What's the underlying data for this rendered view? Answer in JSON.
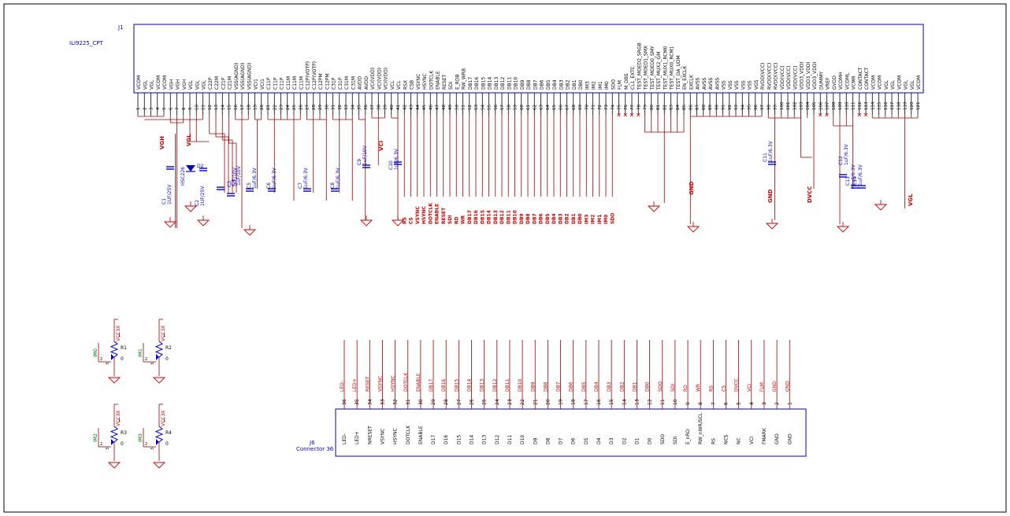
{
  "colors": {
    "wire": "#990000",
    "body": "#0000aa",
    "ref": "#0000cc",
    "pin": "#000000",
    "net": "#cc0000",
    "gnd": "#cc0000",
    "frame": "#000000",
    "cap": "#0000cc",
    "green": "#006600"
  },
  "j1": {
    "ref": "J1",
    "value": "ILI9225_CPT",
    "pins": [
      {
        "n": "1",
        "name": "VCOM"
      },
      {
        "n": "2",
        "name": "VGL"
      },
      {
        "n": "3",
        "name": "VGL"
      },
      {
        "n": "4",
        "name": "VCOM"
      },
      {
        "n": "5",
        "name": "VCOM"
      },
      {
        "n": "6",
        "name": "VGH"
      },
      {
        "n": "7",
        "name": "VGH"
      },
      {
        "n": "8",
        "name": "VGH"
      },
      {
        "n": "9",
        "name": "VGL"
      },
      {
        "n": "10",
        "name": "VGL"
      },
      {
        "n": "11",
        "name": "VGL"
      },
      {
        "n": "12",
        "name": "C22P"
      },
      {
        "n": "13",
        "name": "C22M"
      },
      {
        "n": "14",
        "name": "C21P"
      },
      {
        "n": "15",
        "name": "C21M"
      },
      {
        "n": "16",
        "name": "VSS(AGND)"
      },
      {
        "n": "17",
        "name": "VSS(AGND)"
      },
      {
        "n": "18",
        "name": "VSS(AGND)"
      },
      {
        "n": "19",
        "name": "VCI1"
      },
      {
        "n": "20",
        "name": "VCI1"
      },
      {
        "n": "21",
        "name": "C11P"
      },
      {
        "n": "22",
        "name": "C11P"
      },
      {
        "n": "23",
        "name": "C11P"
      },
      {
        "n": "24",
        "name": "C11M"
      },
      {
        "n": "25",
        "name": "C11M"
      },
      {
        "n": "26",
        "name": "C11M"
      },
      {
        "n": "27",
        "name": "C12P(VOTP)"
      },
      {
        "n": "28",
        "name": "C12P(VOTP)"
      },
      {
        "n": "29",
        "name": "C12PM"
      },
      {
        "n": "30",
        "name": "C12PM"
      },
      {
        "n": "31",
        "name": "C31P"
      },
      {
        "n": "32",
        "name": "C31P"
      },
      {
        "n": "33",
        "name": "C31M"
      },
      {
        "n": "34",
        "name": "C31M"
      },
      {
        "n": "35",
        "name": "AVDD"
      },
      {
        "n": "36",
        "name": "AVDD"
      },
      {
        "n": "37",
        "name": "VCI(VDD)"
      },
      {
        "n": "38",
        "name": "VCI(VDD)"
      },
      {
        "n": "39",
        "name": "VCI(VDD)"
      },
      {
        "n": "40",
        "name": "VCL"
      },
      {
        "n": "41",
        "name": "VCL"
      },
      {
        "n": "42",
        "name": "RSX"
      },
      {
        "n": "43",
        "name": "CSB"
      },
      {
        "n": "44",
        "name": "VSYNC"
      },
      {
        "n": "45",
        "name": "HSYNC"
      },
      {
        "n": "46",
        "name": "DOTCLK"
      },
      {
        "n": "47",
        "name": "ENABLE"
      },
      {
        "n": "48",
        "name": "RESET"
      },
      {
        "n": "49",
        "name": "SDI"
      },
      {
        "n": "50",
        "name": "E_RDB"
      },
      {
        "n": "51",
        "name": "RW_WRB"
      },
      {
        "n": "52",
        "name": "DB17"
      },
      {
        "n": "53",
        "name": "DB16"
      },
      {
        "n": "54",
        "name": "DB15"
      },
      {
        "n": "55",
        "name": "DB14"
      },
      {
        "n": "56",
        "name": "DB13"
      },
      {
        "n": "57",
        "name": "DB12"
      },
      {
        "n": "58",
        "name": "DB11"
      },
      {
        "n": "59",
        "name": "DB10"
      },
      {
        "n": "60",
        "name": "DB9"
      },
      {
        "n": "61",
        "name": "DB8"
      },
      {
        "n": "62",
        "name": "DB7"
      },
      {
        "n": "63",
        "name": "DB6"
      },
      {
        "n": "64",
        "name": "DB5"
      },
      {
        "n": "65",
        "name": "DB4"
      },
      {
        "n": "66",
        "name": "DB3"
      },
      {
        "n": "67",
        "name": "DB2"
      },
      {
        "n": "68",
        "name": "DB1"
      },
      {
        "n": "69",
        "name": "DB0"
      },
      {
        "n": "70",
        "name": "IM3"
      },
      {
        "n": "71",
        "name": "IM2"
      },
      {
        "n": "72",
        "name": "IM1"
      },
      {
        "n": "73",
        "name": "IM0"
      },
      {
        "n": "74",
        "name": "SDO"
      },
      {
        "n": "75",
        "name": "FLM"
      },
      {
        "n": "76",
        "name": "M_DBS"
      },
      {
        "n": "77",
        "name": "CL1_EXTC"
      },
      {
        "n": "78",
        "name": "TEST_MOED2_SRGB"
      },
      {
        "n": "79",
        "name": "TEST_MOED1_SMX"
      },
      {
        "n": "80",
        "name": "TEST_MOED0_SMY"
      },
      {
        "n": "81",
        "name": "TEST_MUX2_GM"
      },
      {
        "n": "82",
        "name": "TEST_MUX1_RCM0"
      },
      {
        "n": "83",
        "name": "TEST_MUX0_RCM1"
      },
      {
        "n": "84",
        "name": "TEST_DA_UDM"
      },
      {
        "n": "85",
        "name": "EN_EXCLK"
      },
      {
        "n": "86",
        "name": "EXCLK"
      },
      {
        "n": "87",
        "name": "AVSS"
      },
      {
        "n": "88",
        "name": "AVSS"
      },
      {
        "n": "89",
        "name": "AVSS"
      },
      {
        "n": "90",
        "name": "AVSS"
      },
      {
        "n": "91",
        "name": "VSS"
      },
      {
        "n": "92",
        "name": "VSS"
      },
      {
        "n": "93",
        "name": "VSS"
      },
      {
        "n": "94",
        "name": "VSS"
      },
      {
        "n": "95",
        "name": "VSS"
      },
      {
        "n": "96",
        "name": "VGS"
      },
      {
        "n": "97",
        "name": "RVDD(VCC)"
      },
      {
        "n": "98",
        "name": "RVDD(VCC)"
      },
      {
        "n": "99",
        "name": "RVDD(VCC)"
      },
      {
        "n": "100",
        "name": "VDD(VCC)"
      },
      {
        "n": "101",
        "name": "VDD(VCC)"
      },
      {
        "n": "102",
        "name": "VDD(VCC)"
      },
      {
        "n": "103",
        "name": "VDD3_VDDI"
      },
      {
        "n": "104",
        "name": "VDD3_VDDI"
      },
      {
        "n": "105",
        "name": "VDD3_VDDI"
      },
      {
        "n": "106",
        "name": "DUMMY"
      },
      {
        "n": "107",
        "name": "VREF"
      },
      {
        "n": "108",
        "name": "GVDD"
      },
      {
        "n": "109",
        "name": "VCOMH"
      },
      {
        "n": "110",
        "name": "VCOML"
      },
      {
        "n": "111",
        "name": "VCMR"
      },
      {
        "n": "112",
        "name": "CONTACT"
      },
      {
        "n": "113",
        "name": "CONTACT"
      },
      {
        "n": "114",
        "name": "VCOM"
      },
      {
        "n": "115",
        "name": "VCOM"
      },
      {
        "n": "116",
        "name": "VGL"
      },
      {
        "n": "117",
        "name": "VGL"
      },
      {
        "n": "118",
        "name": "VCOM"
      },
      {
        "n": "119",
        "name": "VGL"
      },
      {
        "n": "120",
        "name": "VGL"
      },
      {
        "n": "121",
        "name": "VCOM"
      }
    ]
  },
  "j1_nets": [
    "RS",
    "CS",
    "VSYNC",
    "HSYNC",
    "DOTCLK",
    "ENABLE",
    "RESET",
    "SDI",
    "RD",
    "WR",
    "DB17",
    "DB16",
    "DB15",
    "DB14",
    "DB13",
    "DB12",
    "DB11",
    "DB10",
    "DB9",
    "DB8",
    "DB7",
    "DB6",
    "DB5",
    "DB4",
    "DB3",
    "DB2",
    "DB1",
    "DB0",
    "IM3",
    "IM2",
    "IM1",
    "IM0",
    "SDO"
  ],
  "power_nets": {
    "vgh": "VGH",
    "vgl": "VGL",
    "vci": "VCI",
    "gnd": "GND",
    "dvcc": "DVCC",
    "vgl_right": "VGL",
    "gnd_right": "GND"
  },
  "caps": [
    {
      "ref": "C1",
      "value": "1UF/25V"
    },
    {
      "ref": "D2",
      "value": "HSC226"
    },
    {
      "ref": "C2",
      "value": "1UF/25V"
    },
    {
      "ref": "C3",
      "value": "1uF/10V"
    },
    {
      "ref": "C4",
      "value": "1uF/10V"
    },
    {
      "ref": "C5",
      "value": "1uF/6.3V"
    },
    {
      "ref": "C6",
      "value": "1uF/6.3V"
    },
    {
      "ref": "C7",
      "value": "1uF/6.3V"
    },
    {
      "ref": "C8",
      "value": "1uF/6.3V"
    },
    {
      "ref": "C9",
      "value": "1uF/10V"
    },
    {
      "ref": "C10",
      "value": "1uF/6.3V"
    },
    {
      "ref": "C11",
      "value": "1uF/6.3V"
    },
    {
      "ref": "C12",
      "value": "1uF/6.3V"
    },
    {
      "ref": "C13",
      "value": "1uF/6.3V"
    },
    {
      "ref": "C14",
      "value": "1uF/6.3V"
    }
  ],
  "resistors": [
    {
      "ref": "R1",
      "value": "0",
      "net": "IM0",
      "supply": "VCC3X"
    },
    {
      "ref": "R2",
      "value": "0",
      "net": "IM1",
      "supply": "VCC3X"
    },
    {
      "ref": "R3",
      "value": "0",
      "net": "IM2",
      "supply": "VCC3X"
    },
    {
      "ref": "R4",
      "value": "0",
      "net": "IM3",
      "supply": "VCC3X"
    }
  ],
  "j6": {
    "ref": "J6",
    "value": "Connector 36",
    "pins": [
      {
        "n": "36",
        "name": "LED-",
        "net": "LED-"
      },
      {
        "n": "35",
        "name": "LED+",
        "net": "LED+"
      },
      {
        "n": "34",
        "name": "NRESET",
        "net": "RESET"
      },
      {
        "n": "33",
        "name": "VSYNC",
        "net": "VSYNC"
      },
      {
        "n": "32",
        "name": "HSYNC",
        "net": "HSYNC"
      },
      {
        "n": "31",
        "name": "DOTCLK",
        "net": "DOTCLK"
      },
      {
        "n": "30",
        "name": "ENABLE",
        "net": "ENABLE"
      },
      {
        "n": "29",
        "name": "D17",
        "net": "DB17"
      },
      {
        "n": "28",
        "name": "D16",
        "net": "DB16"
      },
      {
        "n": "27",
        "name": "D15",
        "net": "DB15"
      },
      {
        "n": "26",
        "name": "D14",
        "net": "DB14"
      },
      {
        "n": "25",
        "name": "D13",
        "net": "DB13"
      },
      {
        "n": "24",
        "name": "D12",
        "net": "DB12"
      },
      {
        "n": "23",
        "name": "D11",
        "net": "DB11"
      },
      {
        "n": "22",
        "name": "D10",
        "net": "DB10"
      },
      {
        "n": "21",
        "name": "D9",
        "net": "DB9"
      },
      {
        "n": "20",
        "name": "D8",
        "net": "DB8"
      },
      {
        "n": "19",
        "name": "D7",
        "net": "DB7"
      },
      {
        "n": "18",
        "name": "D6",
        "net": "DB6"
      },
      {
        "n": "17",
        "name": "D5",
        "net": "DB5"
      },
      {
        "n": "16",
        "name": "D4",
        "net": "DB4"
      },
      {
        "n": "15",
        "name": "D3",
        "net": "DB3"
      },
      {
        "n": "14",
        "name": "D2",
        "net": "DB2"
      },
      {
        "n": "13",
        "name": "D1",
        "net": "DB1"
      },
      {
        "n": "12",
        "name": "D0",
        "net": "DB0"
      },
      {
        "n": "11",
        "name": "SDO",
        "net": "SDO"
      },
      {
        "n": "10",
        "name": "SDI",
        "net": "SDI"
      },
      {
        "n": "9",
        "name": "E_nRD",
        "net": "RD"
      },
      {
        "n": "8",
        "name": "RW_nWR/SCL",
        "net": "WR"
      },
      {
        "n": "7",
        "name": "RS",
        "net": "RS"
      },
      {
        "n": "6",
        "name": "NCS",
        "net": "CS"
      },
      {
        "n": "5",
        "name": "NC",
        "net": "DVCC"
      },
      {
        "n": "4",
        "name": "VCI",
        "net": "VCI"
      },
      {
        "n": "3",
        "name": "FMARK",
        "net": "FLM"
      },
      {
        "n": "2",
        "name": "GND",
        "net": "GND"
      },
      {
        "n": "1",
        "name": "GND",
        "net": "GND"
      }
    ]
  }
}
